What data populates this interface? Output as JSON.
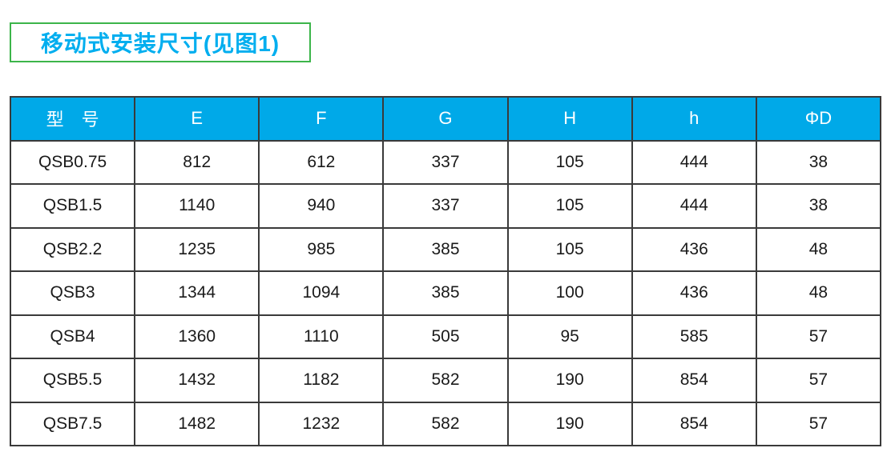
{
  "page": {
    "title": "移动式安装尺寸(见图1)"
  },
  "colors": {
    "title_text": "#00AEEF",
    "title_box_border": "#3CB54A",
    "header_background": "#00A9E8",
    "header_text": "#FFFFFF",
    "table_border": "#3A3A3A",
    "cell_text": "#1A1A1A",
    "page_background": "#FFFFFF"
  },
  "table": {
    "headers": [
      "型　号",
      "E",
      "F",
      "G",
      "H",
      "h",
      "ΦD"
    ],
    "rows": [
      [
        "QSB0.75",
        "812",
        "612",
        "337",
        "105",
        "444",
        "38"
      ],
      [
        "QSB1.5",
        "1140",
        "940",
        "337",
        "105",
        "444",
        "38"
      ],
      [
        "QSB2.2",
        "1235",
        "985",
        "385",
        "105",
        "436",
        "48"
      ],
      [
        "QSB3",
        "1344",
        "1094",
        "385",
        "100",
        "436",
        "48"
      ],
      [
        "QSB4",
        "1360",
        "1110",
        "505",
        "95",
        "585",
        "57"
      ],
      [
        "QSB5.5",
        "1432",
        "1182",
        "582",
        "190",
        "854",
        "57"
      ],
      [
        "QSB7.5",
        "1482",
        "1232",
        "582",
        "190",
        "854",
        "57"
      ]
    ]
  }
}
